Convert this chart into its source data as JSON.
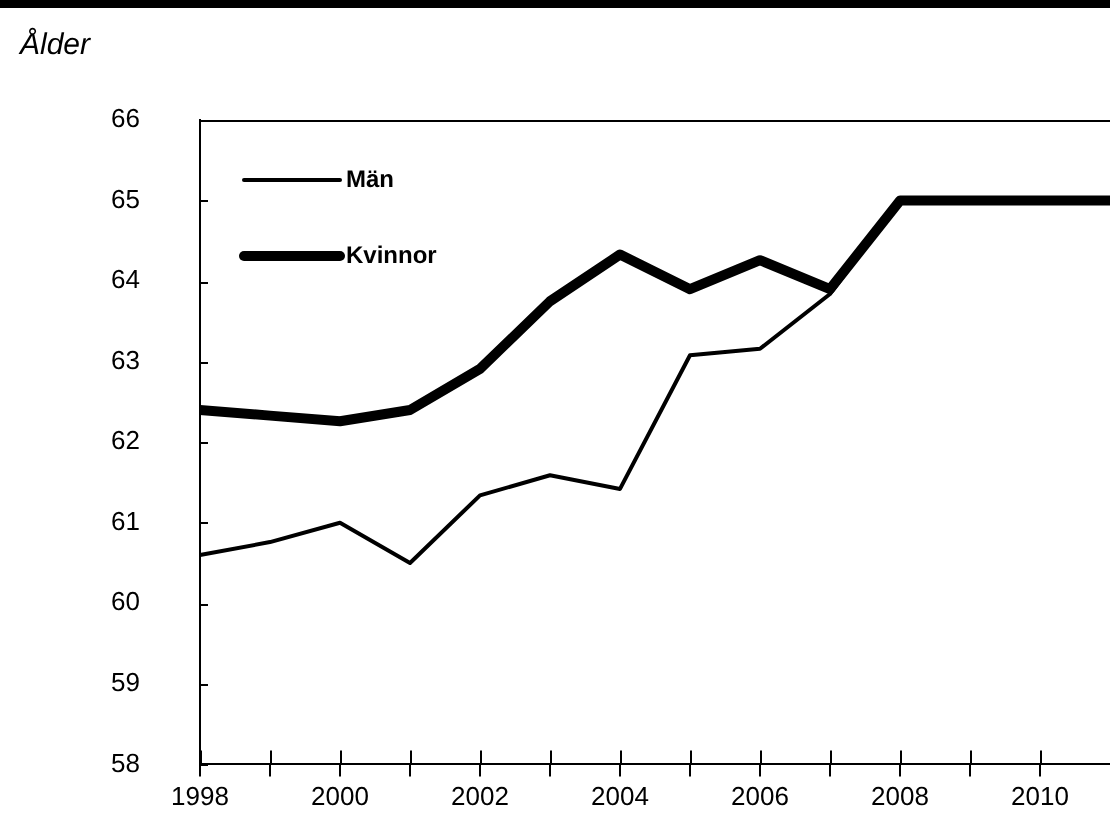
{
  "chart_data": {
    "type": "line",
    "ylabel": "Ålder",
    "x": [
      1998,
      1999,
      2000,
      2001,
      2002,
      2003,
      2004,
      2005,
      2006,
      2007,
      2008,
      2009,
      2010,
      2011
    ],
    "series": [
      {
        "name": "Män",
        "color": "#000000",
        "values": [
          60.6,
          60.76,
          61.0,
          60.5,
          61.34,
          61.59,
          61.42,
          63.08,
          63.16,
          63.84,
          65,
          65,
          65,
          65
        ]
      },
      {
        "name": "Kvinnor",
        "color": "#000000",
        "values": [
          62.4,
          62.33,
          62.26,
          62.4,
          62.91,
          63.75,
          64.33,
          63.9,
          64.26,
          63.9,
          65,
          65,
          65,
          65
        ]
      }
    ],
    "xlim": [
      1998,
      2011
    ],
    "xticks": [
      1998,
      {
        "value": 1999,
        "label": null
      },
      2000,
      {
        "value": 2001,
        "label": null
      },
      2002,
      {
        "value": 2003,
        "label": null
      },
      2004,
      {
        "value": 2005,
        "label": null
      },
      2006,
      {
        "value": 2007,
        "label": null
      },
      2008,
      {
        "value": 2009,
        "label": null
      },
      2010
    ],
    "ylim": [
      58,
      66
    ],
    "yticks": [
      58,
      59,
      60,
      61,
      62,
      63,
      64,
      65,
      66
    ],
    "grid": false,
    "legend": "top left",
    "marker": "none",
    "line_style": "solid"
  }
}
